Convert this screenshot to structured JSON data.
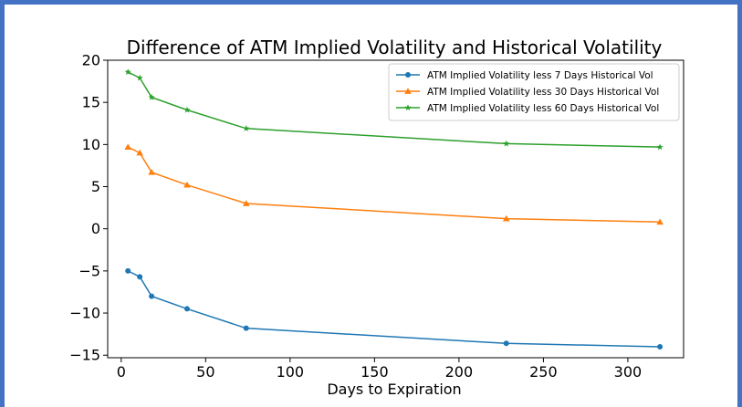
{
  "chart_data": {
    "type": "line",
    "title": "Difference of ATM Implied Volatility and Historical Volatility",
    "xlabel": "Days to Expiration",
    "ylabel": "",
    "xlim": [
      -8,
      333
    ],
    "ylim": [
      -15.3,
      20
    ],
    "xticks": [
      0,
      50,
      100,
      150,
      200,
      250,
      300
    ],
    "yticks": [
      -15,
      -10,
      -5,
      0,
      5,
      10,
      15,
      20
    ],
    "xtick_labels": [
      "0",
      "50",
      "100",
      "150",
      "200",
      "250",
      "300"
    ],
    "ytick_labels": [
      "−15",
      "−10",
      "−5",
      "0",
      "5",
      "10",
      "15",
      "20"
    ],
    "grid": false,
    "legend_position": "top-right",
    "x": [
      4,
      11,
      18,
      39,
      74,
      228,
      319
    ],
    "series": [
      {
        "name": "ATM Implied Volatility less 7 Days Historical Vol",
        "color": "#1f77b4",
        "marker": "circle",
        "values": [
          -5.0,
          -5.7,
          -8.0,
          -9.5,
          -11.8,
          -13.6,
          -14.0
        ]
      },
      {
        "name": "ATM Implied Volatility less 30 Days Historical Vol",
        "color": "#ff7f0e",
        "marker": "triangle",
        "values": [
          9.7,
          9.0,
          6.7,
          5.2,
          3.0,
          1.2,
          0.8
        ]
      },
      {
        "name": "ATM Implied Volatility less 60 Days Historical Vol",
        "color": "#2ca02c",
        "marker": "star",
        "values": [
          18.6,
          17.9,
          15.6,
          14.1,
          11.9,
          10.1,
          9.7
        ]
      }
    ]
  }
}
